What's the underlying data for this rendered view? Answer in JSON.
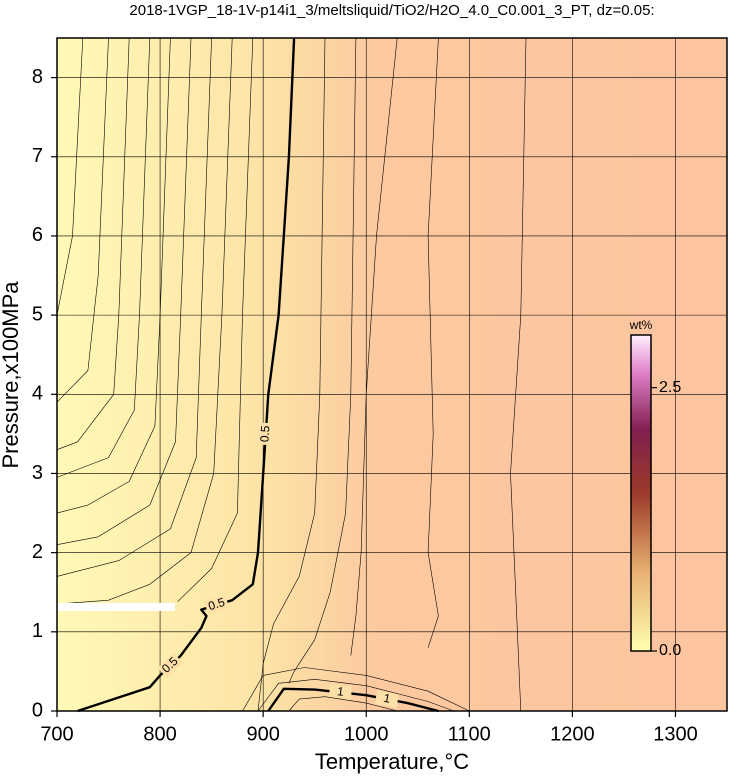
{
  "chart_data": {
    "type": "contour",
    "title": "2018-1VGP_18-1V-p14i1_3/meltsliquid/TiO2/H2O_4.0_C0.001_3_PT, dz=0.05:",
    "x_label": "Temperature,°C",
    "y_label": "Pressure,x100MPa",
    "xlim": [
      700,
      1350
    ],
    "ylim": [
      0,
      8.5
    ],
    "xticks": [
      700,
      800,
      900,
      1000,
      1100,
      1200,
      1300
    ],
    "yticks": [
      0,
      1,
      2,
      3,
      4,
      5,
      6,
      7,
      8
    ],
    "grid": true,
    "contours": [
      {
        "level": 0.05,
        "x": [
          725,
          715,
          700
        ],
        "y": [
          8.5,
          6,
          5.0
        ]
      },
      {
        "level": 0.1,
        "x": [
          750,
          740,
          730,
          700
        ],
        "y": [
          8.5,
          5.5,
          4.3,
          3.9
        ]
      },
      {
        "level": 0.15,
        "x": [
          770,
          760,
          755,
          720,
          700
        ],
        "y": [
          8.5,
          5,
          4.0,
          3.4,
          3.3
        ]
      },
      {
        "level": 0.2,
        "x": [
          790,
          780,
          775,
          750,
          700
        ],
        "y": [
          8.5,
          5,
          3.8,
          3.2,
          2.95
        ]
      },
      {
        "level": 0.25,
        "x": [
          810,
          800,
          795,
          770,
          730,
          700
        ],
        "y": [
          8.5,
          5,
          3.6,
          2.9,
          2.6,
          2.5
        ]
      },
      {
        "level": 0.3,
        "x": [
          830,
          820,
          815,
          790,
          740,
          700
        ],
        "y": [
          8.5,
          5,
          3.4,
          2.6,
          2.2,
          2.1
        ]
      },
      {
        "level": 0.35,
        "x": [
          850,
          840,
          835,
          810,
          760,
          700
        ],
        "y": [
          8.5,
          5,
          3.2,
          2.3,
          1.9,
          1.7
        ]
      },
      {
        "level": 0.4,
        "x": [
          870,
          860,
          852,
          830,
          790,
          750,
          700
        ],
        "y": [
          8.5,
          5,
          3,
          2.0,
          1.6,
          1.4,
          1.35
        ]
      },
      {
        "level": 0.45,
        "x": [
          890,
          880,
          875,
          850,
          817
        ],
        "y": [
          8.5,
          5,
          2.5,
          1.8,
          1.38
        ]
      },
      {
        "level": 0.5,
        "x": [
          720,
          790,
          800,
          820,
          840,
          845,
          840,
          870,
          890,
          895,
          900,
          905,
          915,
          920,
          925,
          930
        ],
        "y": [
          0,
          0.3,
          0.45,
          0.7,
          1.05,
          1.2,
          1.28,
          1.4,
          1.6,
          2.0,
          3,
          4,
          5,
          6,
          7,
          8.5
        ]
      },
      {
        "level": 0.55,
        "x": [
          960,
          955,
          950,
          935,
          910,
          900,
          895
        ],
        "y": [
          8.5,
          4,
          2.5,
          1.7,
          1.1,
          0.6,
          0
        ]
      },
      {
        "level": 0.6,
        "x": [
          990,
          985,
          980,
          965,
          950,
          930,
          925
        ],
        "y": [
          8.5,
          4,
          2.5,
          1.5,
          0.9,
          0.5,
          0.35
        ]
      },
      {
        "level": 0.65,
        "x": [
          1030,
          1010,
          1000,
          995,
          990,
          985
        ],
        "y": [
          8.5,
          6,
          4,
          2,
          1.2,
          0.7
        ]
      },
      {
        "level": 0.7,
        "x": [
          1070,
          1060,
          1065,
          1060,
          1070,
          1060
        ],
        "y": [
          8.5,
          6,
          3.5,
          2,
          1.2,
          0.8
        ]
      },
      {
        "level": 0.75,
        "x": [
          1155,
          1150,
          1140,
          1145,
          1150
        ],
        "y": [
          8.5,
          5,
          3,
          1.5,
          0
        ]
      },
      {
        "level": 0.8,
        "x": [
          880,
          900,
          940,
          1000,
          1060,
          1100
        ],
        "y": [
          0,
          0.45,
          0.55,
          0.45,
          0.25,
          0
        ]
      },
      {
        "level": 0.9,
        "x": [
          895,
          915,
          950,
          1000,
          1060,
          1085
        ],
        "y": [
          0,
          0.35,
          0.4,
          0.32,
          0.12,
          0
        ]
      },
      {
        "level": 1,
        "x": [
          905,
          920,
          950,
          1000,
          1040,
          1070
        ],
        "y": [
          0,
          0.28,
          0.27,
          0.2,
          0.1,
          0
        ]
      },
      {
        "level": 1.2,
        "x": [
          925,
          935,
          960,
          1000,
          1030
        ],
        "y": [
          0,
          0.15,
          0.18,
          0.1,
          0
        ]
      }
    ],
    "colorbar": {
      "label": "wt%",
      "lim": [
        0,
        3.0
      ],
      "ticks": [
        {
          "value": 0,
          "label": "0.0"
        },
        {
          "value": 2.5,
          "label": "2.5"
        }
      ]
    }
  }
}
